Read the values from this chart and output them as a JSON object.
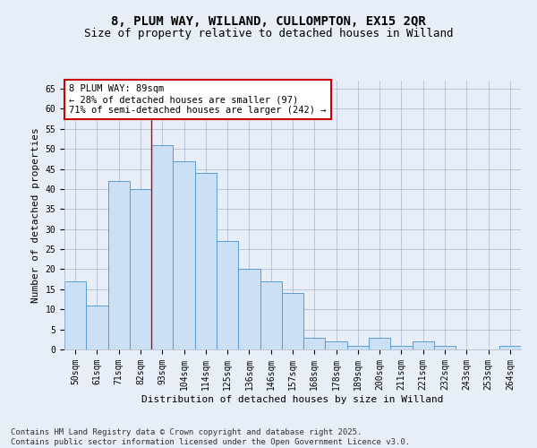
{
  "title_line1": "8, PLUM WAY, WILLAND, CULLOMPTON, EX15 2QR",
  "title_line2": "Size of property relative to detached houses in Willand",
  "xlabel": "Distribution of detached houses by size in Willand",
  "ylabel": "Number of detached properties",
  "categories": [
    "50sqm",
    "61sqm",
    "71sqm",
    "82sqm",
    "93sqm",
    "104sqm",
    "114sqm",
    "125sqm",
    "136sqm",
    "146sqm",
    "157sqm",
    "168sqm",
    "178sqm",
    "189sqm",
    "200sqm",
    "211sqm",
    "221sqm",
    "232sqm",
    "243sqm",
    "253sqm",
    "264sqm"
  ],
  "values": [
    17,
    11,
    42,
    40,
    51,
    47,
    44,
    27,
    20,
    17,
    14,
    3,
    2,
    1,
    3,
    1,
    2,
    1,
    0,
    0,
    1
  ],
  "bar_fill": "#cce0f5",
  "bar_edge": "#5b9bd5",
  "vline_x": 3.5,
  "vline_color": "#cc0000",
  "annotation_text": "8 PLUM WAY: 89sqm\n← 28% of detached houses are smaller (97)\n71% of semi-detached houses are larger (242) →",
  "annotation_box_color": "#ffffff",
  "annotation_box_edge": "#cc0000",
  "ylim": [
    0,
    67
  ],
  "yticks": [
    0,
    5,
    10,
    15,
    20,
    25,
    30,
    35,
    40,
    45,
    50,
    55,
    60,
    65
  ],
  "footer_line1": "Contains HM Land Registry data © Crown copyright and database right 2025.",
  "footer_line2": "Contains public sector information licensed under the Open Government Licence v3.0.",
  "background_color": "#e8eef8",
  "title_fontsize": 10,
  "subtitle_fontsize": 9,
  "axis_label_fontsize": 8,
  "tick_fontsize": 7,
  "annotation_fontsize": 7.5,
  "footer_fontsize": 6.5
}
